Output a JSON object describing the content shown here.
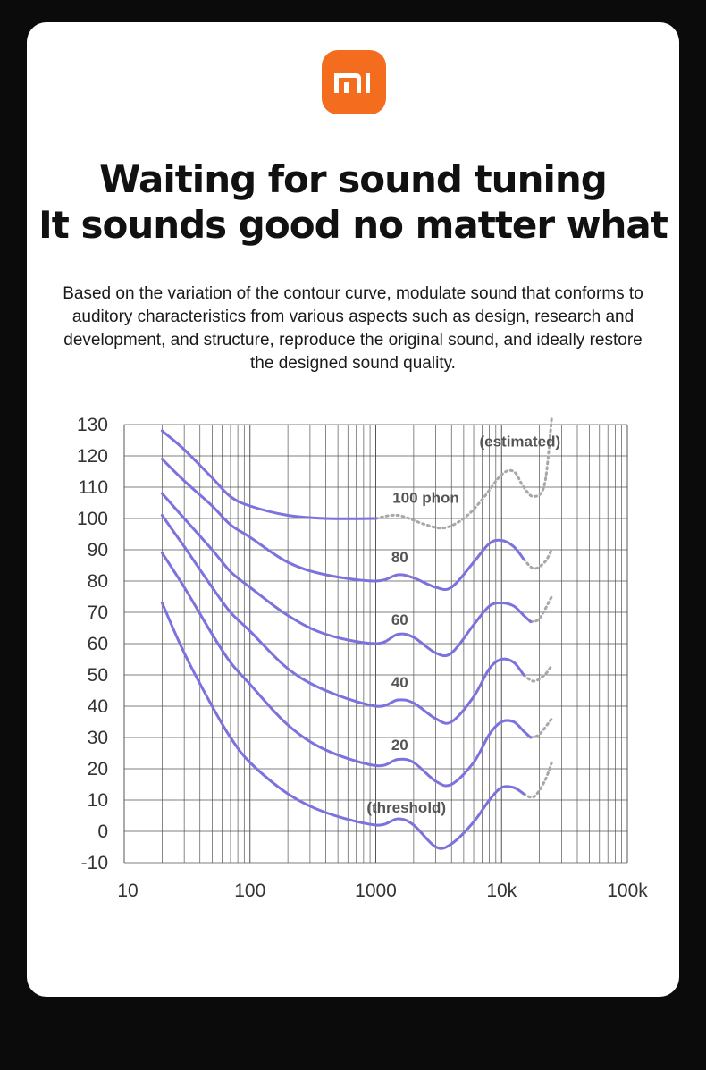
{
  "brand": {
    "logo_text": "mi",
    "accent": "#f46c1d"
  },
  "headline": {
    "line1": "Waiting for sound tuning",
    "line2": "It sounds good no matter what"
  },
  "description": "Based on the variation of the contour curve, modulate sound that conforms to auditory characteristics from various aspects such as design, research and development, and structure, reproduce the original sound, and ideally restore the designed sound quality.",
  "chart_data": {
    "type": "line",
    "x_scale": "log",
    "xlim": [
      10,
      100000
    ],
    "ylim": [
      -10,
      130
    ],
    "x_ticks": [
      {
        "value": 10,
        "label": "10"
      },
      {
        "value": 100,
        "label": "100"
      },
      {
        "value": 1000,
        "label": "1000"
      },
      {
        "value": 10000,
        "label": "10k"
      },
      {
        "value": 100000,
        "label": "100k"
      }
    ],
    "y_ticks": [
      130,
      120,
      110,
      100,
      90,
      80,
      70,
      60,
      50,
      40,
      30,
      20,
      10,
      0,
      -10
    ],
    "grid": true,
    "line_color": "#7b72dd",
    "estimated_color": "#a8a8a8",
    "estimated_label": "(estimated)",
    "series": [
      {
        "name": "100 phon",
        "points": [
          [
            20,
            128
          ],
          [
            30,
            122
          ],
          [
            50,
            113
          ],
          [
            70,
            107
          ],
          [
            100,
            104
          ],
          [
            200,
            101
          ],
          [
            400,
            100
          ],
          [
            1000,
            100
          ]
        ],
        "estimated": [
          [
            1000,
            100
          ],
          [
            1500,
            101
          ],
          [
            2500,
            98
          ],
          [
            3500,
            97
          ],
          [
            5000,
            100
          ],
          [
            7000,
            106
          ],
          [
            10000,
            114
          ],
          [
            12500,
            115
          ],
          [
            15000,
            110
          ],
          [
            18000,
            107
          ],
          [
            22000,
            111
          ],
          [
            25000,
            132
          ]
        ]
      },
      {
        "name": "80",
        "points": [
          [
            20,
            119
          ],
          [
            30,
            112
          ],
          [
            50,
            104
          ],
          [
            70,
            98
          ],
          [
            100,
            94
          ],
          [
            200,
            86
          ],
          [
            400,
            82
          ],
          [
            1000,
            80
          ],
          [
            1500,
            82
          ],
          [
            2000,
            81
          ],
          [
            3000,
            78
          ],
          [
            4000,
            78
          ],
          [
            6000,
            86
          ],
          [
            8000,
            92
          ],
          [
            10000,
            93
          ],
          [
            12500,
            91
          ],
          [
            15000,
            87
          ]
        ],
        "estimated": [
          [
            15000,
            87
          ],
          [
            18000,
            84
          ],
          [
            22000,
            86
          ],
          [
            25000,
            90
          ]
        ]
      },
      {
        "name": "60",
        "points": [
          [
            20,
            108
          ],
          [
            30,
            100
          ],
          [
            50,
            90
          ],
          [
            70,
            83
          ],
          [
            100,
            78
          ],
          [
            200,
            69
          ],
          [
            400,
            63
          ],
          [
            1000,
            60
          ],
          [
            1500,
            63
          ],
          [
            2000,
            62
          ],
          [
            3000,
            57
          ],
          [
            4000,
            57
          ],
          [
            6000,
            66
          ],
          [
            8000,
            72
          ],
          [
            10000,
            73
          ],
          [
            12500,
            72
          ],
          [
            15000,
            69
          ],
          [
            17000,
            67
          ]
        ],
        "estimated": [
          [
            17000,
            67
          ],
          [
            20000,
            68
          ],
          [
            25000,
            75
          ]
        ]
      },
      {
        "name": "40",
        "points": [
          [
            20,
            101
          ],
          [
            30,
            91
          ],
          [
            50,
            78
          ],
          [
            70,
            70
          ],
          [
            100,
            64
          ],
          [
            200,
            52
          ],
          [
            400,
            45
          ],
          [
            1000,
            40
          ],
          [
            1500,
            42
          ],
          [
            2000,
            41
          ],
          [
            3000,
            36
          ],
          [
            4000,
            35
          ],
          [
            6000,
            43
          ],
          [
            8000,
            52
          ],
          [
            10000,
            55
          ],
          [
            12500,
            54
          ],
          [
            15000,
            50
          ]
        ],
        "estimated": [
          [
            15000,
            50
          ],
          [
            18000,
            48
          ],
          [
            22000,
            50
          ],
          [
            25000,
            53
          ]
        ]
      },
      {
        "name": "20",
        "points": [
          [
            20,
            89
          ],
          [
            30,
            78
          ],
          [
            50,
            63
          ],
          [
            70,
            54
          ],
          [
            100,
            47
          ],
          [
            200,
            34
          ],
          [
            400,
            26
          ],
          [
            1000,
            21
          ],
          [
            1500,
            23
          ],
          [
            2000,
            22
          ],
          [
            3000,
            16
          ],
          [
            4000,
            15
          ],
          [
            6000,
            22
          ],
          [
            8000,
            31
          ],
          [
            10000,
            35
          ],
          [
            12500,
            35
          ],
          [
            15000,
            32
          ],
          [
            17000,
            30
          ]
        ],
        "estimated": [
          [
            17000,
            30
          ],
          [
            20000,
            31
          ],
          [
            25000,
            36
          ]
        ]
      },
      {
        "name": "(threshold)",
        "points": [
          [
            20,
            73
          ],
          [
            30,
            57
          ],
          [
            50,
            40
          ],
          [
            70,
            30
          ],
          [
            100,
            22
          ],
          [
            200,
            12
          ],
          [
            400,
            6
          ],
          [
            1000,
            2
          ],
          [
            1500,
            4
          ],
          [
            2000,
            2
          ],
          [
            3000,
            -5
          ],
          [
            4000,
            -4
          ],
          [
            6000,
            3
          ],
          [
            8000,
            10
          ],
          [
            10000,
            14
          ],
          [
            12500,
            14
          ],
          [
            15000,
            12
          ]
        ],
        "estimated": [
          [
            15000,
            12
          ],
          [
            18000,
            11
          ],
          [
            22000,
            16
          ],
          [
            25000,
            22
          ]
        ]
      }
    ],
    "annotations": [
      {
        "text": "100 phon",
        "x": 2500,
        "y": 105
      },
      {
        "text": "80",
        "x": 1550,
        "y": 86
      },
      {
        "text": "60",
        "x": 1550,
        "y": 66
      },
      {
        "text": "40",
        "x": 1550,
        "y": 46
      },
      {
        "text": "20",
        "x": 1550,
        "y": 26
      },
      {
        "text": "(threshold)",
        "x": 1750,
        "y": 6
      },
      {
        "text": "(estimated)",
        "x": 14000,
        "y": 123
      }
    ]
  }
}
